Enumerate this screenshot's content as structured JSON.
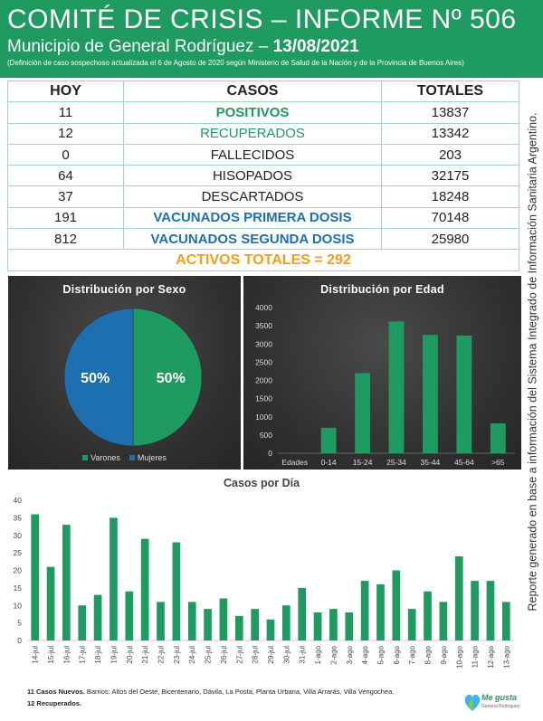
{
  "header": {
    "title": "COMITÉ DE CRISIS – INFORME Nº 506",
    "subtitle_prefix": "Municipio de General Rodríguez – ",
    "subtitle_date": "13/08/2021",
    "note": "(Definición de caso sospechoso actualizada el 6 de Agosto de 2020 según Ministerio de Salud de la Nación y de la Provincia de Buenos Aires)"
  },
  "side_note": "Reporte generado en base a información del Sistema Integrado de Información Sanitaria Argentino.",
  "table": {
    "headers": [
      "HOY",
      "CASOS",
      "TOTALES"
    ],
    "rows": [
      {
        "hoy": "11",
        "casos": "POSITIVOS",
        "totales": "13837",
        "style": "green"
      },
      {
        "hoy": "12",
        "casos": "RECUPERADOS",
        "totales": "13342",
        "style": "green-light"
      },
      {
        "hoy": "0",
        "casos": "FALLECIDOS",
        "totales": "203",
        "style": "plain"
      },
      {
        "hoy": "64",
        "casos": "HISOPADOS",
        "totales": "32175",
        "style": "plain"
      },
      {
        "hoy": "37",
        "casos": "DESCARTADOS",
        "totales": "18248",
        "style": "plain"
      },
      {
        "hoy": "191",
        "casos": "VACUNADOS PRIMERA DOSIS",
        "totales": "70148",
        "style": "blue"
      },
      {
        "hoy": "812",
        "casos": "VACUNADOS SEGUNDA DOSIS",
        "totales": "25980",
        "style": "blue"
      }
    ],
    "activos": "ACTIVOS TOTALES = 292"
  },
  "chart_data": [
    {
      "type": "pie",
      "title": "Distribución por Sexo",
      "labels": [
        "Varones",
        "Mujeres"
      ],
      "values": [
        50,
        50
      ],
      "value_labels": [
        "50%",
        "50%"
      ],
      "colors": [
        "#1f9a60",
        "#1e6fb0"
      ],
      "legend": "bottom"
    },
    {
      "type": "bar",
      "title": "Distribución por Edad",
      "xlabel": "Edades",
      "categories": [
        "0-14",
        "15-24",
        "25-34",
        "35-44",
        "45-64",
        ">65"
      ],
      "values": [
        700,
        2200,
        3620,
        3250,
        3230,
        820
      ],
      "ylim": [
        0,
        4000
      ],
      "yticks": [
        "0",
        "500",
        "1000",
        "1500",
        "2000",
        "2500",
        "3000",
        "3500",
        "4000"
      ],
      "color": "#1f9a60"
    },
    {
      "type": "bar",
      "title": "Casos por Día",
      "categories": [
        "14-jul",
        "15-jul",
        "16-jul",
        "17-jul",
        "18-jul",
        "19-jul",
        "20-jul",
        "21-jul",
        "22-jul",
        "23-jul",
        "24-jul",
        "25-jul",
        "26-jul",
        "27-jul",
        "28-jul",
        "29-jul",
        "30-jul",
        "31-jul",
        "1-ago",
        "2-ago",
        "3-ago",
        "4-ago",
        "5-ago",
        "6-ago",
        "7-ago",
        "8-ago",
        "9-ago",
        "10-ago",
        "11-ago",
        "12-ago",
        "13-ago"
      ],
      "values": [
        36,
        21,
        33,
        10,
        13,
        35,
        14,
        29,
        11,
        28,
        11,
        9,
        12,
        7,
        9,
        6,
        10,
        15,
        8,
        9,
        8,
        17,
        16,
        20,
        9,
        14,
        11,
        24,
        17,
        17,
        11
      ],
      "ylim": [
        0,
        40
      ],
      "yticks": [
        "0",
        "5",
        "10",
        "15",
        "20",
        "25",
        "30",
        "35",
        "40"
      ],
      "color": "#1f9a60"
    }
  ],
  "footer": {
    "line1_bold": "11 Casos Nuevos.",
    "line1_rest": " Barrios: Altos del Oeste, Bicentenario, Dávila, La Posta, Planta Urbana, Villa Arrarás, Villa Vengochea.",
    "line2_bold": "12 Recuperados."
  },
  "logo": {
    "name": "Me gusta",
    "sub": "General Rodríguez"
  }
}
